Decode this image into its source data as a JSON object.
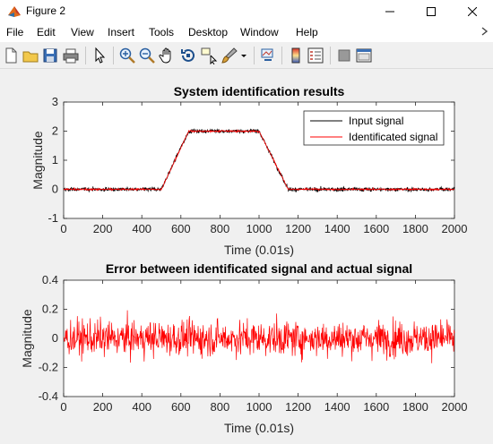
{
  "window": {
    "title": "Figure 2",
    "app_icon": "matlab-icon"
  },
  "menu": [
    "File",
    "Edit",
    "View",
    "Insert",
    "Tools",
    "Desktop",
    "Window",
    "Help"
  ],
  "toolbar_icons": [
    "new-figure-icon",
    "open-file-icon",
    "save-icon",
    "print-icon",
    "edit-plot-arrow-icon",
    "zoom-in-icon",
    "zoom-out-icon",
    "pan-hand-icon",
    "rotate-3d-icon",
    "data-cursor-icon",
    "brush-icon",
    "brush-dropdown-icon",
    "link-plot-icon",
    "insert-colorbar-icon",
    "insert-legend-icon",
    "hide-plot-tools-icon",
    "show-plot-tools-icon"
  ],
  "colors": {
    "input": "#000000",
    "identified": "#ff0000",
    "error": "#ff0000"
  },
  "chart_data": [
    {
      "type": "line",
      "title": "System identification results",
      "xlabel": "Time (0.01s)",
      "ylabel": "Magnitude",
      "xlim": [
        0,
        2000
      ],
      "ylim": [
        -1,
        3
      ],
      "xticks": [
        0,
        200,
        400,
        600,
        800,
        1000,
        1200,
        1400,
        1600,
        1800,
        2000
      ],
      "yticks": [
        -1,
        0,
        1,
        2,
        3
      ],
      "legend_position": "top-right",
      "series": [
        {
          "name": "Input signal",
          "color": "#000000",
          "shape": "noisy trapezoid: ~0 until 500, rises to ~2 by ~640, ~2 until 1000, decays to ~0 by ~1150; noise about ±0.1",
          "x": [
            0,
            500,
            640,
            1000,
            1150,
            2000
          ],
          "y": [
            0,
            0,
            2,
            2,
            0,
            0
          ]
        },
        {
          "name": "Identificated signal",
          "color": "#ff0000",
          "x": [
            0,
            500,
            640,
            1000,
            1150,
            2000
          ],
          "y": [
            0,
            0,
            2,
            2,
            0,
            0
          ]
        }
      ],
      "grid": false
    },
    {
      "type": "line",
      "title": "Error between identificated signal and actual signal",
      "xlabel": "Time (0.01s)",
      "ylabel": "Magnitude",
      "xlim": [
        0,
        2000
      ],
      "ylim": [
        -0.4,
        0.4
      ],
      "xticks": [
        0,
        200,
        400,
        600,
        800,
        1000,
        1200,
        1400,
        1600,
        1800,
        2000
      ],
      "yticks": [
        -0.4,
        -0.2,
        0,
        0.2,
        0.4
      ],
      "series": [
        {
          "color": "#ff0000",
          "shape": "zero-mean noise, amplitude mostly within ±0.2, peaks near ±0.35",
          "x": [
            0,
            2000
          ],
          "y": [
            0,
            0
          ]
        }
      ],
      "grid": false
    }
  ],
  "tick_labels": {
    "x": [
      "0",
      "200",
      "400",
      "600",
      "800",
      "1000",
      "1200",
      "1400",
      "1600",
      "1800",
      "2000"
    ],
    "y1": [
      "-1",
      "0",
      "1",
      "2",
      "3"
    ],
    "y2": [
      "-0.4",
      "-0.2",
      "0",
      "0.2",
      "0.4"
    ]
  }
}
